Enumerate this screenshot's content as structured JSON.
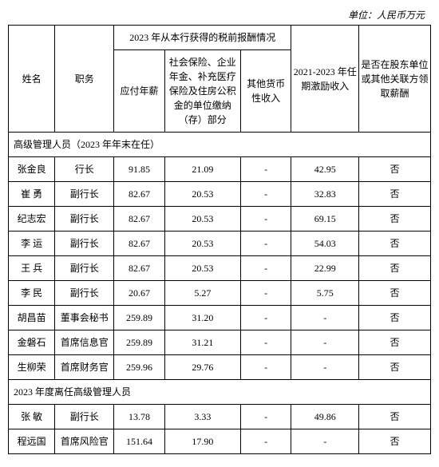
{
  "unit_label": "单位：人民币万元",
  "headers": {
    "name": "姓名",
    "position": "职务",
    "group_2023": "2023 年从本行获得的税前报酬情况",
    "salary": "应付年薪",
    "insurance": "社会保险、企业年金、补充医疗保险及住房公积金的单位缴纳（存）部分",
    "other_income": "其他货币性收入",
    "incentive": "2021-2023 年任期激励收入",
    "related": "是否在股东单位或其他关联方领取薪酬"
  },
  "sections": {
    "current": "高级管理人员（2023 年年末在任）",
    "former": "2023 年度离任高级管理人员"
  },
  "rows_current": [
    {
      "name": "张金良",
      "pos": "行长",
      "sal": "91.85",
      "ins": "21.09",
      "oth": "-",
      "inc": "42.95",
      "rel": "否"
    },
    {
      "name": "崔 勇",
      "pos": "副行长",
      "sal": "82.67",
      "ins": "20.53",
      "oth": "-",
      "inc": "32.83",
      "rel": "否"
    },
    {
      "name": "纪志宏",
      "pos": "副行长",
      "sal": "82.67",
      "ins": "20.53",
      "oth": "-",
      "inc": "69.15",
      "rel": "否"
    },
    {
      "name": "李 运",
      "pos": "副行长",
      "sal": "82.67",
      "ins": "20.53",
      "oth": "-",
      "inc": "54.03",
      "rel": "否"
    },
    {
      "name": "王 兵",
      "pos": "副行长",
      "sal": "82.67",
      "ins": "20.53",
      "oth": "-",
      "inc": "22.99",
      "rel": "否"
    },
    {
      "name": "李 民",
      "pos": "副行长",
      "sal": "20.67",
      "ins": "5.27",
      "oth": "-",
      "inc": "5.75",
      "rel": "否"
    },
    {
      "name": "胡昌苗",
      "pos": "董事会秘书",
      "sal": "259.89",
      "ins": "31.20",
      "oth": "-",
      "inc": "-",
      "rel": "否"
    },
    {
      "name": "金磐石",
      "pos": "首席信息官",
      "sal": "259.89",
      "ins": "31.21",
      "oth": "-",
      "inc": "-",
      "rel": "否"
    },
    {
      "name": "生柳荣",
      "pos": "首席财务官",
      "sal": "259.96",
      "ins": "29.76",
      "oth": "-",
      "inc": "-",
      "rel": "否"
    }
  ],
  "rows_former": [
    {
      "name": "张 敏",
      "pos": "副行长",
      "sal": "13.78",
      "ins": "3.33",
      "oth": "-",
      "inc": "49.86",
      "rel": "否"
    },
    {
      "name": "程远国",
      "pos": "首席风险官",
      "sal": "151.64",
      "ins": "17.90",
      "oth": "-",
      "inc": "-",
      "rel": "否"
    }
  ],
  "style": {
    "font_size_pt": 9,
    "border_color": "#000000",
    "background_color": "#ffffff",
    "text_color": "#000000"
  }
}
